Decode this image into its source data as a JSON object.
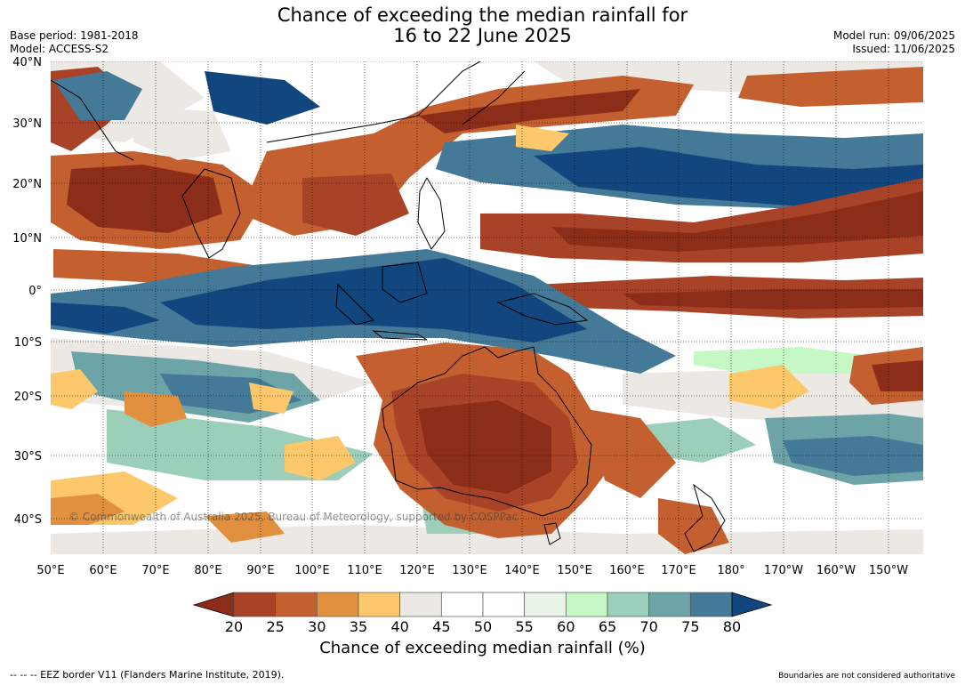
{
  "title": {
    "line1": "Chance of exceeding the median rainfall for",
    "line2": "16 to 22 June 2025"
  },
  "meta": {
    "base_period": "Base period: 1981-2018",
    "model": "Model: ACCESS-S2",
    "model_run": "Model run: 09/06/2025",
    "issued": "Issued: 11/06/2025"
  },
  "map": {
    "lat_labels": [
      "40°N",
      "30°N",
      "20°N",
      "10°N",
      "0°",
      "10°S",
      "20°S",
      "30°S",
      "40°S"
    ],
    "lon_labels": [
      "50°E",
      "60°E",
      "70°E",
      "80°E",
      "90°E",
      "100°E",
      "110°E",
      "120°E",
      "130°E",
      "140°E",
      "150°E",
      "160°E",
      "170°E",
      "180°",
      "170°W",
      "160°W",
      "150°W"
    ],
    "copyright": "© Commonwealth of Australia 2025, Bureau of Meteorology, supported by COSPPac"
  },
  "colorbar": {
    "ticks": [
      "20",
      "25",
      "30",
      "35",
      "40",
      "45",
      "50",
      "55",
      "60",
      "65",
      "70",
      "75",
      "80"
    ],
    "colors": [
      "#8c2d1a",
      "#a84327",
      "#c45f2f",
      "#e0903f",
      "#fdc86b",
      "#ece9e4",
      "#ffffff",
      "#ffffff",
      "#e8f5e8",
      "#c6f8c6",
      "#9ccfb9",
      "#6ca4a8",
      "#447a98",
      "#12467f"
    ],
    "title": "Chance of exceeding median rainfall (%)"
  },
  "footer": {
    "eez": "--  --  -- EEZ border V11 (Flanders Marine Institute, 2019).",
    "disclaimer": "Boundaries are not considered authoritative"
  }
}
